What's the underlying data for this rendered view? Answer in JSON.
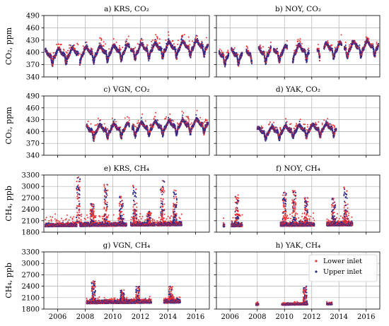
{
  "chart_data": {
    "type": "scatter",
    "grid": true,
    "x_ticks": [
      2006,
      2008,
      2010,
      2012,
      2014,
      2016
    ],
    "xlim": [
      2005.0,
      2017.0
    ],
    "legend": {
      "placement": "top-right",
      "panel": "h",
      "entries": [
        {
          "name": "Lower inlet",
          "color": "#ee3333"
        },
        {
          "name": "Upper inlet",
          "color": "#2a2a8c"
        }
      ]
    },
    "rows": [
      {
        "ylabel": "CO₂, ppm",
        "ylim": [
          340,
          490
        ],
        "y_ticks": [
          340,
          370,
          400,
          430,
          460,
          490
        ]
      },
      {
        "ylabel": "CO₂, ppm",
        "ylim": [
          340,
          490
        ],
        "y_ticks": [
          340,
          370,
          400,
          430,
          460,
          490
        ]
      },
      {
        "ylabel": "CH₄, ppb",
        "ylim": [
          1800,
          3300
        ],
        "y_ticks": [
          1800,
          2100,
          2400,
          2700,
          3000,
          3300
        ]
      },
      {
        "ylabel": "CH₄, ppb",
        "ylim": [
          1800,
          3300
        ],
        "y_ticks": [
          1800,
          2100,
          2400,
          2700,
          3000,
          3300
        ]
      }
    ],
    "panels": [
      {
        "id": "a",
        "title": "a) KRS, CO₂",
        "row": 0,
        "col": 0,
        "gas": "CO2",
        "base": 395,
        "seasonal_amp": 22,
        "trend": 2.0,
        "spike_scale": 25,
        "segments": [
          [
            2005.1,
            2007.5
          ],
          [
            2007.6,
            2011.2
          ],
          [
            2011.3,
            2016.9
          ]
        ]
      },
      {
        "id": "b",
        "title": "b) NOY, CO₂",
        "row": 0,
        "col": 1,
        "gas": "CO2",
        "base": 394,
        "seasonal_amp": 22,
        "trend": 2.0,
        "spike_scale": 18,
        "segments": [
          [
            2005.2,
            2005.9
          ],
          [
            2006.1,
            2006.9
          ],
          [
            2007.2,
            2007.6
          ],
          [
            2008.1,
            2009.0
          ],
          [
            2009.2,
            2010.2
          ],
          [
            2010.6,
            2011.8
          ],
          [
            2012.4,
            2012.6
          ],
          [
            2012.9,
            2014.2
          ],
          [
            2014.4,
            2015.4
          ],
          [
            2015.5,
            2016.9
          ]
        ]
      },
      {
        "id": "c",
        "title": "c) VGN, CO₂",
        "row": 1,
        "col": 0,
        "gas": "CO2",
        "base": 398,
        "seasonal_amp": 20,
        "trend": 2.0,
        "spike_scale": 25,
        "segments": [
          [
            2008.1,
            2011.2
          ],
          [
            2011.4,
            2016.9
          ]
        ]
      },
      {
        "id": "d",
        "title": "d) YAK, CO₂",
        "row": 1,
        "col": 1,
        "gas": "CO2",
        "base": 394,
        "seasonal_amp": 18,
        "trend": 2.0,
        "spike_scale": 20,
        "segments": [
          [
            2008.0,
            2013.8
          ]
        ]
      },
      {
        "id": "e",
        "title": "e) KRS, CH₄",
        "row": 2,
        "col": 0,
        "gas": "CH4",
        "base": 1960,
        "band": 120,
        "trend": 3.0,
        "spike_scale": 700,
        "segments": [
          [
            2005.1,
            2007.4
          ],
          [
            2007.6,
            2011.0
          ],
          [
            2011.3,
            2013.1
          ],
          [
            2013.2,
            2015.0
          ]
        ],
        "events": [
          [
            2007.5,
            3250
          ],
          [
            2008.5,
            2550
          ],
          [
            2009.5,
            3050
          ],
          [
            2010.6,
            2750
          ],
          [
            2011.6,
            3050
          ],
          [
            2012.6,
            2350
          ],
          [
            2013.6,
            3250
          ],
          [
            2014.5,
            2900
          ]
        ]
      },
      {
        "id": "f",
        "title": "f) NOY, CH₄",
        "row": 2,
        "col": 1,
        "gas": "CH4",
        "base": 1960,
        "band": 140,
        "trend": 3.0,
        "spike_scale": 700,
        "segments": [
          [
            2005.5,
            2005.6
          ],
          [
            2006.1,
            2006.9
          ],
          [
            2009.7,
            2012.2
          ],
          [
            2013.1,
            2015.0
          ]
        ],
        "events": [
          [
            2006.5,
            2800
          ],
          [
            2010.0,
            2850
          ],
          [
            2010.7,
            2900
          ],
          [
            2011.6,
            2700
          ],
          [
            2013.6,
            2700
          ],
          [
            2014.5,
            3000
          ]
        ]
      },
      {
        "id": "g",
        "title": "g) VGN, CH₄",
        "row": 3,
        "col": 0,
        "gas": "CH4",
        "base": 1950,
        "band": 130,
        "trend": 3.0,
        "spike_scale": 250,
        "segments": [
          [
            2008.1,
            2012.8
          ],
          [
            2013.7,
            2014.9
          ]
        ],
        "events": [
          [
            2008.6,
            2550
          ],
          [
            2010.7,
            2300
          ],
          [
            2011.8,
            2400
          ],
          [
            2014.2,
            2400
          ]
        ]
      },
      {
        "id": "h",
        "title": "h) YAK, CH₄",
        "row": 3,
        "col": 1,
        "gas": "CH4",
        "base": 1900,
        "band": 70,
        "trend": 3.0,
        "spike_scale": 150,
        "segments": [
          [
            2007.9,
            2008.1
          ],
          [
            2009.8,
            2011.7
          ],
          [
            2013.1,
            2013.5
          ]
        ],
        "events": [
          [
            2011.5,
            2400
          ]
        ]
      }
    ]
  }
}
